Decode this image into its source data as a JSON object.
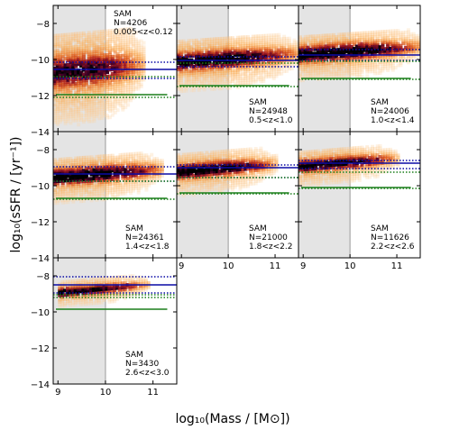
{
  "chart_data": {
    "type": "heatmap",
    "xlabel": "log₁₀(Mass / [M⊙])",
    "ylabel": "log₁₀(sSFR / [yr⁻¹])",
    "xlim": [
      8.9,
      11.5
    ],
    "ylim": [
      -14,
      -7
    ],
    "shaded_region_x": [
      8.9,
      10
    ],
    "panels": [
      {
        "model": "SAM",
        "count_label": "N=4206",
        "z_label": "0.005<z<0.12",
        "blue_line": -10.55,
        "blue_dotted": [
          -10.15,
          -11.05
        ],
        "green_line": -11.95,
        "green_dotted": [
          -10.95,
          -12.1
        ],
        "density": {
          "ridge_y": -10.4,
          "spread": 1.8,
          "x_range": [
            8.9,
            10.8
          ],
          "strength": 0.7
        }
      },
      {
        "model": "SAM",
        "count_label": "N=24948",
        "z_label": "0.5<z<1.0",
        "blue_line": -10.05,
        "blue_dotted": [
          -9.85,
          -10.4
        ],
        "green_line": -11.45,
        "green_dotted": [
          -10.2,
          -11.5
        ],
        "density": {
          "ridge_y": -9.8,
          "spread": 1.0,
          "x_range": [
            8.9,
            11.5
          ],
          "strength": 0.9
        }
      },
      {
        "model": "SAM",
        "count_label": "N=24006",
        "z_label": "1.0<z<1.4",
        "blue_line": -9.75,
        "blue_dotted": [
          -9.45,
          -10.05
        ],
        "green_line": -11.05,
        "green_dotted": [
          -10.1,
          -11.1
        ],
        "density": {
          "ridge_y": -9.4,
          "spread": 0.9,
          "x_range": [
            8.9,
            11.5
          ],
          "strength": 0.95
        }
      },
      {
        "model": "SAM",
        "count_label": "N=24361",
        "z_label": "1.4<z<1.8",
        "blue_line": -9.35,
        "blue_dotted": [
          -8.95,
          -9.75
        ],
        "green_line": -10.7,
        "green_dotted": [
          -9.75,
          -10.75
        ],
        "density": {
          "ridge_y": -9.2,
          "spread": 0.9,
          "x_range": [
            8.9,
            11.2
          ],
          "strength": 0.95
        }
      },
      {
        "model": "SAM",
        "count_label": "N=21000",
        "z_label": "1.8<z<2.2",
        "blue_line": -9.0,
        "blue_dotted": [
          -8.85,
          -9.55
        ],
        "green_line": -10.4,
        "green_dotted": [
          -9.55,
          -10.45
        ],
        "density": {
          "ridge_y": -8.9,
          "spread": 0.8,
          "x_range": [
            8.9,
            11.0
          ],
          "strength": 0.9
        }
      },
      {
        "model": "SAM",
        "count_label": "N=11626",
        "z_label": "2.2<z<2.6",
        "blue_line": -8.75,
        "blue_dotted": [
          -8.6,
          -9.05
        ],
        "green_line": -10.1,
        "green_dotted": [
          -9.25,
          -10.15
        ],
        "density": {
          "ridge_y": -8.6,
          "spread": 0.7,
          "x_range": [
            8.9,
            11.0
          ],
          "strength": 0.85
        }
      },
      {
        "model": "SAM",
        "count_label": "N=3430",
        "z_label": "2.6<z<3.0",
        "blue_line": -8.5,
        "blue_dotted": [
          -8.05,
          -8.95
        ],
        "green_line": -9.85,
        "green_dotted": [
          -9.05,
          -9.2
        ],
        "density": {
          "ridge_y": -8.6,
          "spread": 0.5,
          "x_range": [
            9.0,
            10.9
          ],
          "strength": 0.8
        }
      }
    ],
    "y_ticks": [
      -8,
      -10,
      -12,
      -14
    ],
    "x_ticks": [
      9,
      10,
      11
    ],
    "colors": {
      "shade": "#e4e4e4",
      "blue": "#0a0aa6",
      "green": "#1a7f1a",
      "divider": "#999999"
    }
  }
}
